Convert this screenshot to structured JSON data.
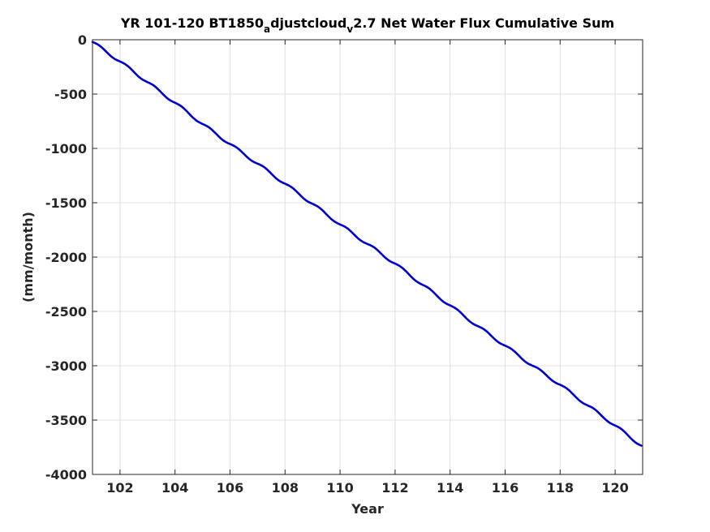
{
  "chart_data": {
    "type": "line",
    "title_parts": {
      "a": "YR 101-120 BT1850",
      "sub1": "a",
      "b": "djustcloud",
      "sub2": "v",
      "c": "2.7 Net Water Flux Cumulative Sum"
    },
    "xlabel": "Year",
    "ylabel": "(mm/month)",
    "xlim": [
      101,
      121
    ],
    "ylim": [
      -4000,
      0
    ],
    "xticks": [
      "102",
      "104",
      "106",
      "108",
      "110",
      "112",
      "114",
      "116",
      "118",
      "120"
    ],
    "yticks": [
      "0",
      "-500",
      "-1000",
      "-1500",
      "-2000",
      "-2500",
      "-3000",
      "-3500",
      "-4000"
    ],
    "grid": true,
    "series_color": "#0000cc",
    "series": [
      {
        "x": [
          101.0,
          102.0,
          103.0,
          104.0,
          105.0,
          106.0,
          107.0,
          108.0,
          109.0,
          110.0,
          111.0,
          112.0,
          113.0,
          114.0,
          115.0,
          116.0,
          117.0,
          118.0,
          119.0,
          120.0,
          120.95
        ],
        "values": [
          -20,
          -200,
          -390,
          -580,
          -775,
          -960,
          -1140,
          -1325,
          -1510,
          -1700,
          -1880,
          -2060,
          -2255,
          -2445,
          -2635,
          -2815,
          -3000,
          -3175,
          -3365,
          -3550,
          -3735
        ]
      }
    ]
  }
}
